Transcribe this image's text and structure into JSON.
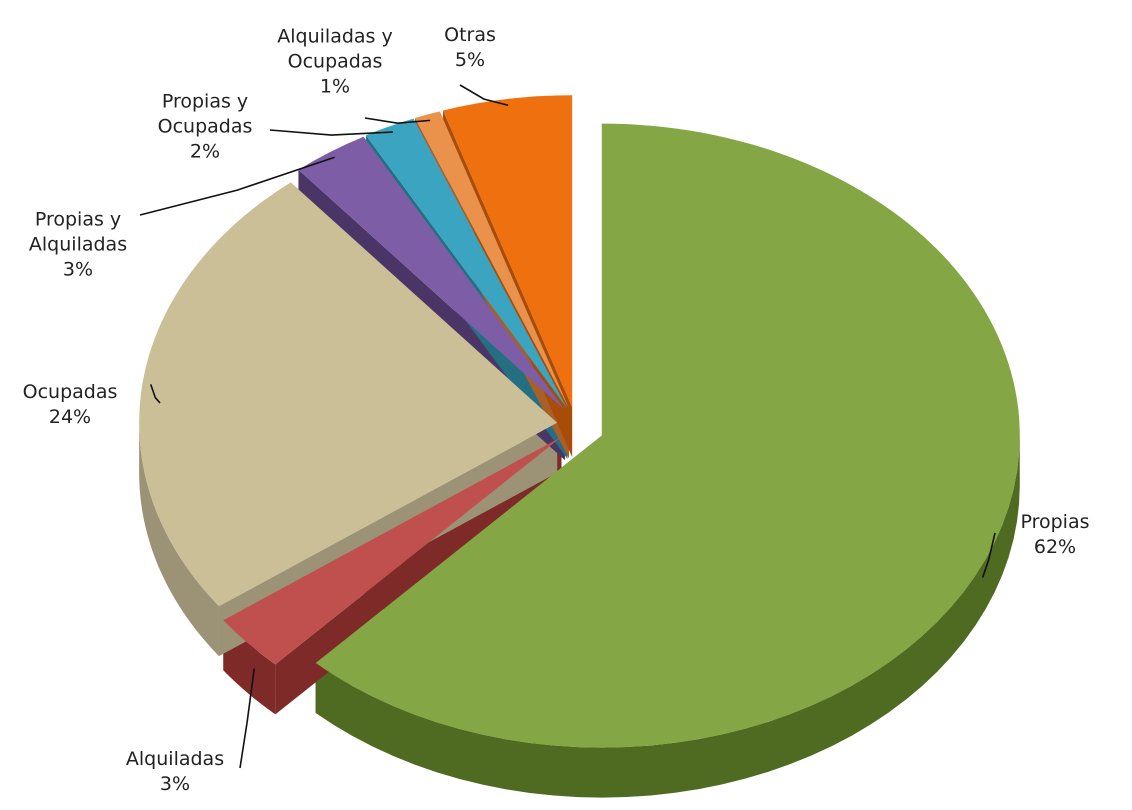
{
  "chart_data": {
    "type": "pie",
    "categories": [
      "Propias",
      "Alquiladas",
      "Ocupadas",
      "Propias y Alquiladas",
      "Propias y Ocupadas",
      "Alquiladas y Ocupadas",
      "Otras"
    ],
    "values": [
      62,
      3,
      24,
      3,
      2,
      1,
      5
    ],
    "value_labels": [
      "62%",
      "3%",
      "24%",
      "3%",
      "2%",
      "1%",
      "5%"
    ],
    "colors": [
      "#84a645",
      "#c0504d",
      "#cbbf97",
      "#7d5ea6",
      "#3ba4c1",
      "#ea914c",
      "#ef700f"
    ],
    "side_colors": [
      "#4f6b22",
      "#7d2a28",
      "#9c9275",
      "#4b3566",
      "#237083",
      "#a95f27",
      "#a84c07"
    ]
  }
}
